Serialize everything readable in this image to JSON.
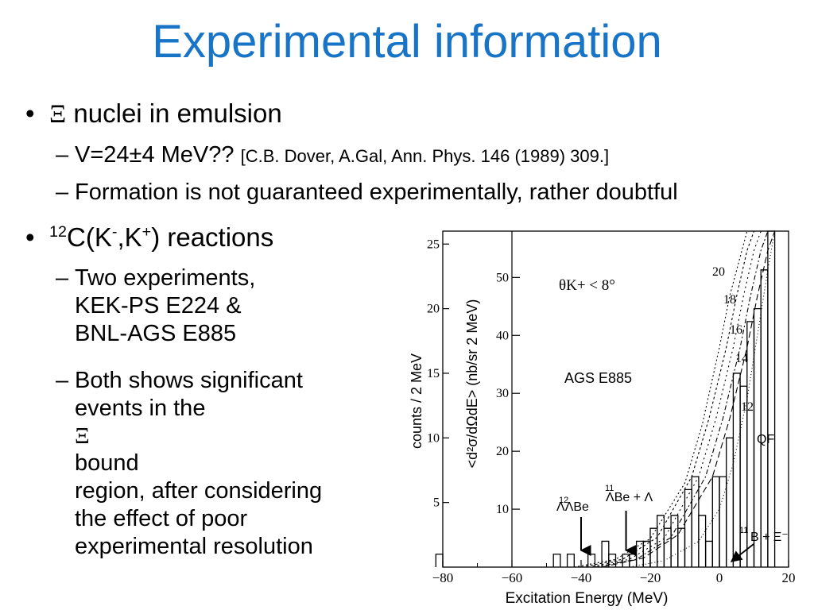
{
  "slide": {
    "title": "Experimental information"
  },
  "bullet1": {
    "marker": "•",
    "symbol": "Ξ",
    "text": " nuclei in emulsion",
    "sub1": {
      "marker": "–",
      "main": "V=24±4 MeV??",
      "citation": "[C.B. Dover, A.Gal, Ann. Phys. 146 (1989) 309.]"
    },
    "sub2": {
      "marker": "–",
      "text": "Formation is not guaranteed experimentally, rather doubtful"
    }
  },
  "bullet2": {
    "marker": "•",
    "mass_number": "12",
    "text_part1": "C(K",
    "minus": "-",
    "text_part2": ",K",
    "plus": "+",
    "text_part3": ") reactions",
    "sub1": {
      "marker": "–",
      "lines": [
        "Two experiments,",
        "KEK-PS E224 &",
        "BNL-AGS E885"
      ]
    },
    "sub2": {
      "marker": "–",
      "line1_before": "Both shows significant",
      "line2_before": "events in the ",
      "symbol": "Ξ",
      "line2_after": " bound",
      "lines_rest": [
        "region, after considering",
        "the effect of poor",
        "experimental resolution"
      ]
    }
  },
  "chart_data": {
    "type": "line",
    "title": "",
    "xlabel": "Excitation Energy  (MeV)",
    "ylabel_left": "counts / 2 MeV",
    "ylabel_right": "<d²σ/dΩdE> (nb/sr 2 MeV)",
    "xlim": [
      -80,
      20
    ],
    "x_ticks": [
      "−80",
      "−60",
      "−40",
      "−20",
      "0",
      "20"
    ],
    "ylim_counts": [
      0,
      26
    ],
    "y_ticks_counts": [
      "5",
      "10",
      "15",
      "20",
      "25"
    ],
    "ylim_xsec": [
      0,
      58
    ],
    "y_ticks_xsec": [
      "10",
      "20",
      "30",
      "40",
      "50"
    ],
    "angle_cut": "θK+ < 8°",
    "experiment_label": "AGS E885",
    "qf_label": "QF",
    "curve_labels": [
      "20",
      "18",
      "16",
      "14",
      "12"
    ],
    "annotations": [
      {
        "text": "ΛΛBe",
        "superscript": "12",
        "x": -40
      },
      {
        "text": "ΛBe + Λ",
        "superscript": "11",
        "x": -27
      },
      {
        "text": "B + Ξ⁻",
        "superscript": "11",
        "x": 0
      }
    ],
    "histogram": {
      "bin_width": 2,
      "bins": [
        {
          "x": -82,
          "y": 1
        },
        {
          "x": -48,
          "y": 1
        },
        {
          "x": -44,
          "y": 1
        },
        {
          "x": -38,
          "y": 1
        },
        {
          "x": -34,
          "y": 2
        },
        {
          "x": -32,
          "y": 1
        },
        {
          "x": -28,
          "y": 1
        },
        {
          "x": -26,
          "y": 1
        },
        {
          "x": -24,
          "y": 2
        },
        {
          "x": -22,
          "y": 2
        },
        {
          "x": -20,
          "y": 3
        },
        {
          "x": -18,
          "y": 4
        },
        {
          "x": -16,
          "y": 3
        },
        {
          "x": -14,
          "y": 4
        },
        {
          "x": -12,
          "y": 3
        },
        {
          "x": -10,
          "y": 6
        },
        {
          "x": -8,
          "y": 7
        },
        {
          "x": -6,
          "y": 4
        },
        {
          "x": -4,
          "y": 2
        },
        {
          "x": -2,
          "y": 7
        },
        {
          "x": 0,
          "y": 7
        },
        {
          "x": 2,
          "y": 10
        },
        {
          "x": 4,
          "y": 15
        },
        {
          "x": 6,
          "y": 14
        },
        {
          "x": 8,
          "y": 19
        },
        {
          "x": 10,
          "y": 20
        },
        {
          "x": 12,
          "y": 23
        },
        {
          "x": 14,
          "y": 26
        }
      ]
    },
    "curves": [
      {
        "name": "20",
        "points": [
          [
            -42,
            0
          ],
          [
            -30,
            0.6
          ],
          [
            -20,
            2.2
          ],
          [
            -10,
            6.5
          ],
          [
            -5,
            11
          ],
          [
            0,
            17
          ],
          [
            3,
            21
          ],
          [
            6,
            24
          ],
          [
            8,
            26
          ]
        ]
      },
      {
        "name": "18",
        "points": [
          [
            -40,
            0
          ],
          [
            -28,
            0.6
          ],
          [
            -18,
            2.3
          ],
          [
            -8,
            7
          ],
          [
            -3,
            11.5
          ],
          [
            2,
            17
          ],
          [
            5,
            21
          ],
          [
            8,
            24.5
          ],
          [
            10,
            26
          ]
        ]
      },
      {
        "name": "16",
        "points": [
          [
            -38,
            0
          ],
          [
            -26,
            0.6
          ],
          [
            -16,
            2.2
          ],
          [
            -6,
            7
          ],
          [
            -1,
            11.5
          ],
          [
            4,
            17
          ],
          [
            7,
            21
          ],
          [
            10,
            24.5
          ],
          [
            12,
            26
          ]
        ]
      },
      {
        "name": "14",
        "points": [
          [
            -36,
            0
          ],
          [
            -24,
            0.6
          ],
          [
            -14,
            2.3
          ],
          [
            -4,
            7
          ],
          [
            1,
            11.5
          ],
          [
            6,
            17
          ],
          [
            9,
            21
          ],
          [
            12,
            24.5
          ],
          [
            14,
            26
          ]
        ]
      },
      {
        "name": "12",
        "points": [
          [
            -34,
            0
          ],
          [
            -22,
            0.7
          ],
          [
            -12,
            2.5
          ],
          [
            -2,
            7
          ],
          [
            3,
            11.5
          ],
          [
            8,
            17
          ],
          [
            11,
            21
          ],
          [
            14,
            24.5
          ],
          [
            16,
            26
          ]
        ]
      },
      {
        "name": "QF",
        "points": [
          [
            -26,
            0
          ],
          [
            -16,
            0.5
          ],
          [
            -6,
            2
          ],
          [
            0,
            4.5
          ],
          [
            4,
            8
          ],
          [
            8,
            13
          ],
          [
            11,
            18
          ],
          [
            14,
            23
          ],
          [
            16,
            26
          ]
        ]
      }
    ]
  }
}
